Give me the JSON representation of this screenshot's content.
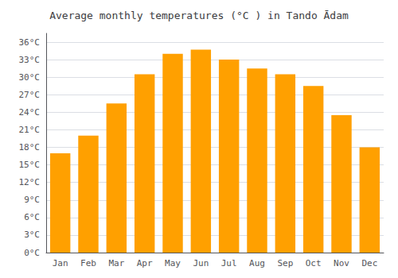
{
  "chart_data": {
    "type": "bar",
    "title": "Average monthly temperatures (°C ) in Tando Ādam",
    "categories": [
      "Jan",
      "Feb",
      "Mar",
      "Apr",
      "May",
      "Jun",
      "Jul",
      "Aug",
      "Sep",
      "Oct",
      "Nov",
      "Dec"
    ],
    "values": [
      17.0,
      20.0,
      25.5,
      30.5,
      34.0,
      34.7,
      33.0,
      31.5,
      30.5,
      28.5,
      23.5,
      18.0
    ],
    "color": "#FFA000",
    "ylim": [
      0,
      37.5
    ],
    "yticks": [
      {
        "value": 0,
        "label": "0°C"
      },
      {
        "value": 3,
        "label": "3°C"
      },
      {
        "value": 6,
        "label": "6°C"
      },
      {
        "value": 9,
        "label": "9°C"
      },
      {
        "value": 12,
        "label": "12°C"
      },
      {
        "value": 15,
        "label": "15°C"
      },
      {
        "value": 18,
        "label": "18°C"
      },
      {
        "value": 21,
        "label": "21°C"
      },
      {
        "value": 24,
        "label": "24°C"
      },
      {
        "value": 27,
        "label": "27°C"
      },
      {
        "value": 30,
        "label": "30°C"
      },
      {
        "value": 33,
        "label": "33°C"
      },
      {
        "value": 36,
        "label": "36°C"
      }
    ],
    "grid": true
  }
}
